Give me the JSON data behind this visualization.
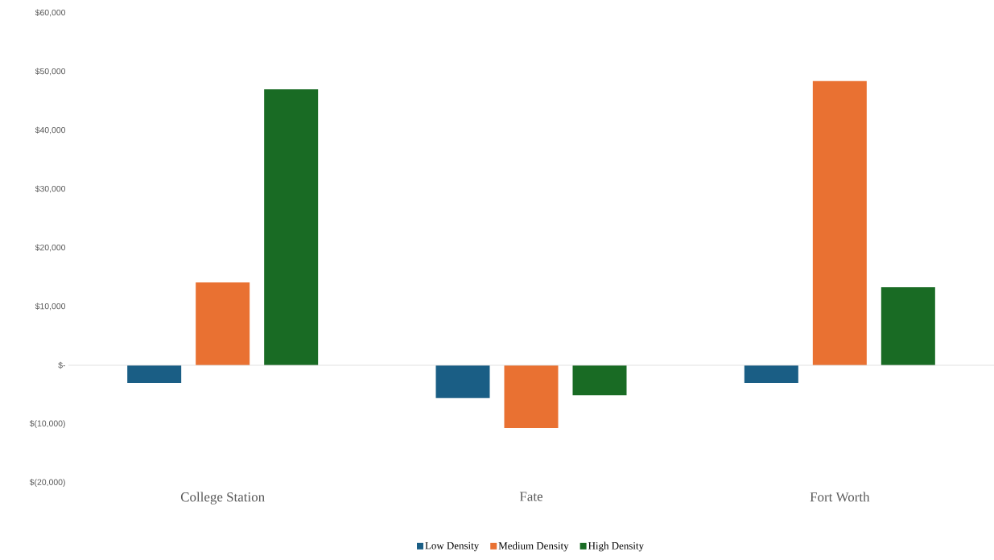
{
  "chart_data": {
    "type": "bar",
    "categories": [
      "College Station",
      "Fate",
      "Fort Worth"
    ],
    "series": [
      {
        "name": "Low Density",
        "color": "#1a5e85",
        "values": [
          -3000,
          -5600,
          -3000
        ]
      },
      {
        "name": "Medium Density",
        "color": "#e97132",
        "values": [
          14100,
          -10700,
          48400
        ]
      },
      {
        "name": "High Density",
        "color": "#196b24",
        "values": [
          47000,
          -5100,
          13300
        ]
      }
    ],
    "ylim": [
      -20000,
      60000
    ],
    "yticks": [
      {
        "value": -20000,
        "label": "$(20,000)"
      },
      {
        "value": -10000,
        "label": "$(10,000)"
      },
      {
        "value": 0,
        "label": "$-"
      },
      {
        "value": 10000,
        "label": "$10,000"
      },
      {
        "value": 20000,
        "label": "$20,000"
      },
      {
        "value": 30000,
        "label": "$30,000"
      },
      {
        "value": 40000,
        "label": "$40,000"
      },
      {
        "value": 50000,
        "label": "$50,000"
      },
      {
        "value": 60000,
        "label": "$60,000"
      }
    ],
    "ref_lines": [
      {
        "axis": "y",
        "value": 0,
        "color": "#d9d9d9"
      }
    ],
    "grid": false,
    "legend": "bottom"
  }
}
